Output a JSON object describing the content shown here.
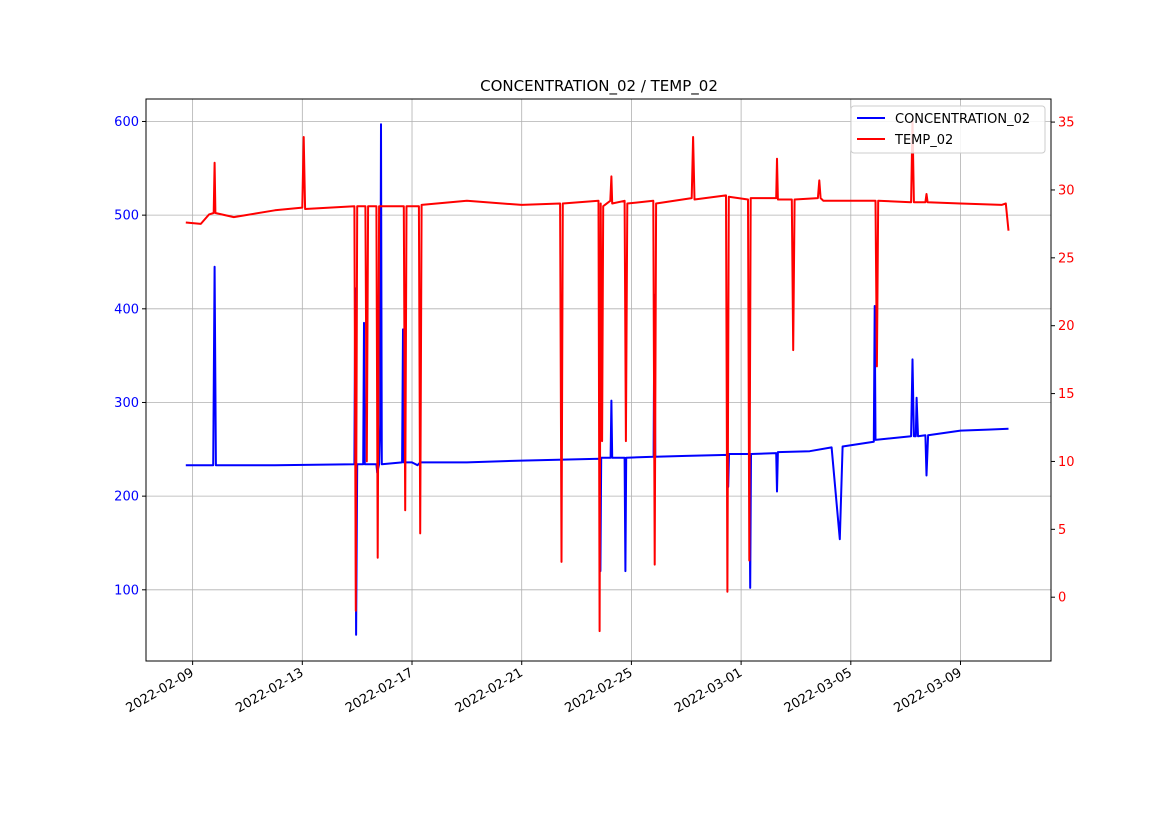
{
  "chart_data": {
    "type": "line",
    "title": "CONCENTRATION_02 / TEMP_02",
    "x_origin_date": "2022-02-09",
    "x_unit": "days since origin",
    "xlim": [
      -1.7,
      31.3
    ],
    "x_tick_labels": [
      "2022-02-09",
      "2022-02-13",
      "2022-02-17",
      "2022-02-21",
      "2022-02-25",
      "2022-03-01",
      "2022-03-05",
      "2022-03-09"
    ],
    "x_tick_values": [
      0,
      4,
      8,
      12,
      16,
      20,
      24,
      28
    ],
    "y_left": {
      "lim": [
        24,
        624
      ],
      "ticks": [
        100,
        200,
        300,
        400,
        500,
        600
      ],
      "color": "#0000ff"
    },
    "y_right": {
      "lim": [
        -4.7,
        36.7
      ],
      "ticks": [
        0,
        5,
        10,
        15,
        20,
        25,
        30,
        35
      ],
      "color": "#ff0000"
    },
    "grid": true,
    "legend_position": "top-right",
    "series": [
      {
        "name": "CONCENTRATION_02",
        "axis": "left",
        "color": "#0000ff",
        "points": [
          [
            -0.25,
            233
          ],
          [
            0.75,
            233
          ],
          [
            0.8,
            445
          ],
          [
            0.85,
            233
          ],
          [
            3,
            233
          ],
          [
            5.9,
            234
          ],
          [
            5.93,
            422
          ],
          [
            5.96,
            52
          ],
          [
            6.0,
            234
          ],
          [
            6.22,
            234
          ],
          [
            6.25,
            385
          ],
          [
            6.28,
            234
          ],
          [
            6.7,
            234
          ],
          [
            6.73,
            225
          ],
          [
            6.8,
            234
          ],
          [
            6.84,
            277
          ],
          [
            6.87,
            597
          ],
          [
            6.9,
            234
          ],
          [
            7.64,
            236
          ],
          [
            7.67,
            378
          ],
          [
            7.7,
            236
          ],
          [
            8,
            236
          ],
          [
            8.2,
            233
          ],
          [
            8.3,
            236
          ],
          [
            10,
            236
          ],
          [
            12,
            238
          ],
          [
            14.84,
            240
          ],
          [
            14.87,
            120
          ],
          [
            14.9,
            241
          ],
          [
            15.24,
            241
          ],
          [
            15.27,
            302
          ],
          [
            15.3,
            241
          ],
          [
            15.75,
            241
          ],
          [
            15.78,
            120
          ],
          [
            15.81,
            241
          ],
          [
            16.81,
            242
          ],
          [
            16.84,
            415
          ],
          [
            16.87,
            242
          ],
          [
            18,
            243
          ],
          [
            19.5,
            244
          ],
          [
            19.53,
            210
          ],
          [
            19.56,
            245
          ],
          [
            20.3,
            245
          ],
          [
            20.33,
            102
          ],
          [
            20.36,
            245
          ],
          [
            21.28,
            246
          ],
          [
            21.31,
            205
          ],
          [
            21.34,
            247
          ],
          [
            22.5,
            248
          ],
          [
            23.3,
            252
          ],
          [
            23.6,
            154
          ],
          [
            23.7,
            253
          ],
          [
            24.84,
            258
          ],
          [
            24.87,
            403
          ],
          [
            24.9,
            260
          ],
          [
            26.2,
            264
          ],
          [
            26.25,
            346
          ],
          [
            26.3,
            264
          ],
          [
            26.37,
            264
          ],
          [
            26.4,
            305
          ],
          [
            26.45,
            264
          ],
          [
            26.72,
            265
          ],
          [
            26.76,
            222
          ],
          [
            26.82,
            265
          ],
          [
            28,
            270
          ],
          [
            29,
            271
          ],
          [
            29.75,
            272
          ]
        ]
      },
      {
        "name": "TEMP_02",
        "axis": "right",
        "color": "#ff0000",
        "points": [
          [
            -0.25,
            27.6
          ],
          [
            0.3,
            27.5
          ],
          [
            0.6,
            28.2
          ],
          [
            0.77,
            28.3
          ],
          [
            0.8,
            32
          ],
          [
            0.83,
            28.3
          ],
          [
            1.5,
            28
          ],
          [
            3,
            28.5
          ],
          [
            4,
            28.7
          ],
          [
            4.05,
            33.9
          ],
          [
            4.1,
            28.6
          ],
          [
            5.9,
            28.8
          ],
          [
            5.95,
            -1
          ],
          [
            6.0,
            28.8
          ],
          [
            6.3,
            28.8
          ],
          [
            6.35,
            10
          ],
          [
            6.4,
            28.8
          ],
          [
            6.7,
            28.8
          ],
          [
            6.75,
            2.9
          ],
          [
            6.8,
            28.8
          ],
          [
            7.7,
            28.8
          ],
          [
            7.75,
            6.4
          ],
          [
            7.8,
            28.8
          ],
          [
            8.25,
            28.8
          ],
          [
            8.3,
            4.7
          ],
          [
            8.35,
            28.9
          ],
          [
            10,
            29.2
          ],
          [
            12,
            28.9
          ],
          [
            13.4,
            29
          ],
          [
            13.45,
            2.6
          ],
          [
            13.5,
            29
          ],
          [
            14.8,
            29.2
          ],
          [
            14.84,
            -2.5
          ],
          [
            14.88,
            29
          ],
          [
            14.93,
            11.5
          ],
          [
            14.97,
            28.8
          ],
          [
            15.23,
            29.2
          ],
          [
            15.27,
            31
          ],
          [
            15.3,
            29
          ],
          [
            15.75,
            29.2
          ],
          [
            15.8,
            11.5
          ],
          [
            15.85,
            29
          ],
          [
            16.8,
            29.2
          ],
          [
            16.85,
            2.4
          ],
          [
            16.9,
            29
          ],
          [
            18.2,
            29.4
          ],
          [
            18.25,
            33.9
          ],
          [
            18.3,
            29.3
          ],
          [
            19.45,
            29.6
          ],
          [
            19.5,
            0.4
          ],
          [
            19.55,
            29.5
          ],
          [
            20.25,
            29.3
          ],
          [
            20.3,
            2.7
          ],
          [
            20.35,
            29.4
          ],
          [
            21.28,
            29.4
          ],
          [
            21.31,
            32.3
          ],
          [
            21.34,
            29.3
          ],
          [
            21.85,
            29.3
          ],
          [
            21.9,
            18.2
          ],
          [
            21.95,
            29.3
          ],
          [
            22.8,
            29.4
          ],
          [
            22.85,
            30.7
          ],
          [
            22.9,
            29.4
          ],
          [
            23.0,
            29.2
          ],
          [
            24.9,
            29.2
          ],
          [
            24.95,
            17
          ],
          [
            25.0,
            29.2
          ],
          [
            26.2,
            29.1
          ],
          [
            26.25,
            35.1
          ],
          [
            26.3,
            29.1
          ],
          [
            26.72,
            29.1
          ],
          [
            26.76,
            29.7
          ],
          [
            26.8,
            29.1
          ],
          [
            28,
            29
          ],
          [
            29.5,
            28.9
          ],
          [
            29.65,
            29
          ],
          [
            29.75,
            27
          ]
        ]
      }
    ]
  }
}
